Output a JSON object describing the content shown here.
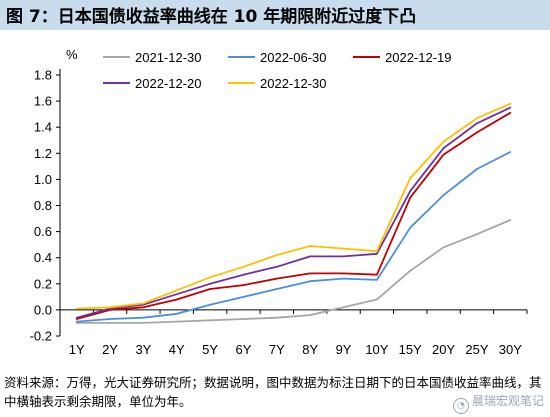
{
  "header": {
    "title": "图 7：日本国债收益率曲线在 10 年期限附近过度下凸"
  },
  "footer": {
    "source": "资料来源：万得，光大证券研究所；数据说明，图中数据为标注日期下的日本国债收益率曲线，其中横轴表示剩余期限，单位为年。",
    "watermark": "晨瑞宏观笔记"
  },
  "colors": {
    "title_bg": "#c8dcee",
    "series": [
      "#a6a6a6",
      "#4a90d9",
      "#c00000",
      "#7030a0",
      "#ffc000"
    ]
  },
  "chart_data": {
    "type": "line",
    "title": "",
    "xlabel": "",
    "ylabel": "%",
    "ylim": [
      -0.2,
      1.8
    ],
    "yticks": [
      "-0.2",
      "0.0",
      "0.2",
      "0.4",
      "0.6",
      "0.8",
      "1.0",
      "1.2",
      "1.4",
      "1.6",
      "1.8"
    ],
    "grid": false,
    "legend_position": "top",
    "categories": [
      "1Y",
      "2Y",
      "3Y",
      "4Y",
      "5Y",
      "6Y",
      "7Y",
      "8Y",
      "9Y",
      "10Y",
      "15Y",
      "20Y",
      "25Y",
      "30Y"
    ],
    "series": [
      {
        "name": "2021-12-30",
        "values": [
          -0.1,
          -0.1,
          -0.1,
          -0.09,
          -0.08,
          -0.07,
          -0.06,
          -0.04,
          0.02,
          0.08,
          0.3,
          0.48,
          0.58,
          0.69
        ]
      },
      {
        "name": "2022-06-30",
        "values": [
          -0.09,
          -0.07,
          -0.06,
          -0.03,
          0.04,
          0.1,
          0.16,
          0.22,
          0.24,
          0.23,
          0.63,
          0.88,
          1.08,
          1.21
        ]
      },
      {
        "name": "2022-12-19",
        "values": [
          -0.07,
          0.0,
          0.02,
          0.08,
          0.16,
          0.19,
          0.24,
          0.28,
          0.28,
          0.27,
          0.86,
          1.19,
          1.36,
          1.51
        ]
      },
      {
        "name": "2022-12-20",
        "values": [
          -0.06,
          0.01,
          0.04,
          0.12,
          0.2,
          0.27,
          0.33,
          0.41,
          0.41,
          0.43,
          0.91,
          1.24,
          1.43,
          1.55
        ]
      },
      {
        "name": "2022-12-30",
        "values": [
          0.01,
          0.02,
          0.05,
          0.15,
          0.25,
          0.33,
          0.42,
          0.49,
          0.47,
          0.45,
          1.01,
          1.29,
          1.47,
          1.58
        ]
      }
    ]
  }
}
